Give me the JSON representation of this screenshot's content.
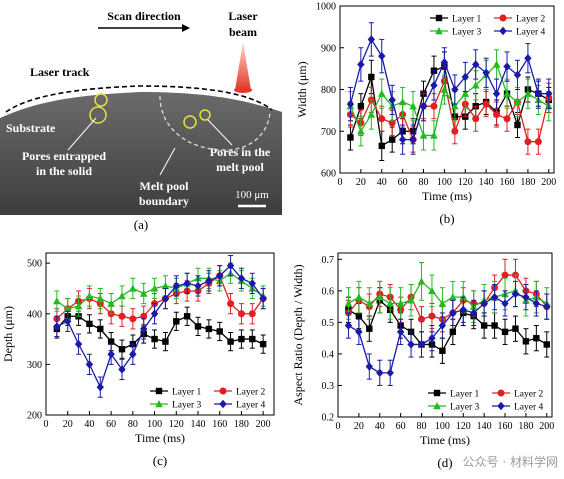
{
  "panel_a": {
    "label": "(a)",
    "scan_direction": "Scan direction",
    "laser_beam_line1": "Laser",
    "laser_beam_line2": "beam",
    "laser_track": "Laser track",
    "substrate": "Substrate",
    "pores_solid_line1": "Pores entrapped",
    "pores_solid_line2": "in the solid",
    "pores_melt_line1": "Pores in the",
    "pores_melt_line2": "melt pool",
    "melt_pool_line1": "Melt pool",
    "melt_pool_line2": "boundary",
    "scale_bar": "100 μm",
    "colors": {
      "background": "#4a4a4a",
      "beam": "#e23a2a",
      "pore_ring": "#e8e040"
    }
  },
  "chart_data": [
    {
      "id": "b",
      "type": "line",
      "panel_label": "(b)",
      "xlabel": "Time (ms)",
      "ylabel": "Width (μm)",
      "xlim": [
        0,
        205
      ],
      "ylim": [
        600,
        1000
      ],
      "xticks": [
        0,
        20,
        40,
        60,
        80,
        100,
        120,
        140,
        160,
        180,
        200
      ],
      "yticks": [
        600,
        700,
        800,
        900,
        1000
      ],
      "legend_position": "top-right",
      "x": [
        10,
        20,
        30,
        40,
        50,
        60,
        70,
        80,
        90,
        100,
        110,
        120,
        130,
        140,
        150,
        160,
        170,
        180,
        190,
        200
      ],
      "series": [
        {
          "name": "Layer 1",
          "color": "#000000",
          "marker": "square",
          "values": [
            685,
            760,
            830,
            665,
            680,
            700,
            700,
            790,
            845,
            855,
            735,
            735,
            760,
            770,
            745,
            790,
            715,
            800,
            790,
            775
          ],
          "errors": [
            30,
            30,
            40,
            35,
            30,
            30,
            30,
            30,
            35,
            35,
            30,
            30,
            30,
            30,
            30,
            30,
            30,
            30,
            30,
            30
          ]
        },
        {
          "name": "Layer 2",
          "color": "#e02020",
          "marker": "circle",
          "values": [
            740,
            720,
            775,
            730,
            720,
            740,
            680,
            760,
            760,
            820,
            700,
            765,
            730,
            765,
            740,
            730,
            770,
            675,
            675,
            780
          ],
          "errors": [
            30,
            30,
            30,
            30,
            30,
            30,
            30,
            30,
            30,
            35,
            30,
            30,
            30,
            30,
            30,
            30,
            30,
            30,
            30,
            35
          ]
        },
        {
          "name": "Layer 3",
          "color": "#22bb22",
          "marker": "triangle",
          "values": [
            760,
            700,
            740,
            790,
            760,
            770,
            760,
            690,
            690,
            800,
            760,
            790,
            810,
            835,
            860,
            790,
            770,
            790,
            775,
            760
          ],
          "errors": [
            35,
            35,
            35,
            35,
            35,
            35,
            35,
            35,
            35,
            35,
            35,
            35,
            35,
            35,
            35,
            35,
            35,
            35,
            35,
            35
          ]
        },
        {
          "name": "Layer 4",
          "color": "#1a1aaa",
          "marker": "diamond",
          "values": [
            765,
            860,
            920,
            880,
            775,
            680,
            680,
            760,
            810,
            865,
            800,
            830,
            860,
            840,
            790,
            855,
            835,
            875,
            790,
            790
          ],
          "errors": [
            40,
            40,
            40,
            40,
            35,
            35,
            35,
            35,
            35,
            35,
            35,
            35,
            35,
            35,
            35,
            35,
            35,
            35,
            35,
            35
          ]
        }
      ]
    },
    {
      "id": "c",
      "type": "line",
      "panel_label": "(c)",
      "xlabel": "Time (ms)",
      "ylabel": "Depth (μm)",
      "xlim": [
        0,
        210
      ],
      "ylim": [
        200,
        520
      ],
      "xticks": [
        0,
        20,
        40,
        60,
        80,
        100,
        120,
        140,
        160,
        180,
        200
      ],
      "yticks": [
        200,
        300,
        400,
        500
      ],
      "legend_position": "bottom-right",
      "x": [
        10,
        20,
        30,
        40,
        50,
        60,
        70,
        80,
        90,
        100,
        110,
        120,
        130,
        140,
        150,
        160,
        170,
        180,
        190,
        200
      ],
      "series": [
        {
          "name": "Layer 1",
          "color": "#000000",
          "marker": "square",
          "values": [
            370,
            395,
            395,
            380,
            370,
            345,
            330,
            340,
            360,
            350,
            345,
            385,
            395,
            375,
            370,
            365,
            345,
            350,
            350,
            340
          ],
          "errors": [
            18,
            18,
            18,
            18,
            18,
            18,
            18,
            18,
            18,
            18,
            18,
            18,
            18,
            18,
            18,
            18,
            18,
            18,
            18,
            18
          ]
        },
        {
          "name": "Layer 2",
          "color": "#e02020",
          "marker": "circle",
          "values": [
            390,
            410,
            425,
            430,
            420,
            400,
            395,
            390,
            395,
            420,
            430,
            440,
            445,
            445,
            460,
            475,
            420,
            400,
            400,
            430
          ],
          "errors": [
            20,
            20,
            20,
            20,
            20,
            20,
            20,
            20,
            20,
            20,
            20,
            20,
            20,
            20,
            20,
            20,
            20,
            20,
            20,
            20
          ]
        },
        {
          "name": "Layer 3",
          "color": "#22bb22",
          "marker": "triangle",
          "values": [
            425,
            410,
            415,
            435,
            430,
            420,
            435,
            450,
            440,
            450,
            455,
            450,
            460,
            470,
            470,
            465,
            480,
            465,
            450,
            435
          ],
          "errors": [
            20,
            20,
            20,
            20,
            20,
            20,
            20,
            20,
            20,
            20,
            20,
            20,
            20,
            20,
            20,
            20,
            20,
            20,
            20,
            20
          ]
        },
        {
          "name": "Layer 4",
          "color": "#1a1aaa",
          "marker": "diamond",
          "values": [
            375,
            385,
            340,
            300,
            255,
            320,
            290,
            320,
            370,
            400,
            430,
            455,
            460,
            455,
            465,
            475,
            495,
            470,
            460,
            430
          ],
          "errors": [
            20,
            20,
            20,
            20,
            20,
            20,
            20,
            20,
            20,
            20,
            20,
            20,
            20,
            20,
            20,
            20,
            20,
            20,
            20,
            20
          ]
        }
      ]
    },
    {
      "id": "d",
      "type": "line",
      "panel_label": "(d)",
      "xlabel": "Time (ms)",
      "ylabel": "Aspect Ratio (Depth / Width)",
      "xlim": [
        0,
        205
      ],
      "ylim": [
        0.2,
        0.72
      ],
      "xticks": [
        0,
        20,
        40,
        60,
        80,
        100,
        120,
        140,
        160,
        180,
        200
      ],
      "yticks": [
        0.2,
        0.3,
        0.4,
        0.5,
        0.6,
        0.7
      ],
      "legend_position": "bottom-right",
      "x": [
        10,
        20,
        30,
        40,
        50,
        60,
        70,
        80,
        90,
        100,
        110,
        120,
        130,
        140,
        150,
        160,
        170,
        180,
        190,
        200
      ],
      "series": [
        {
          "name": "Layer 1",
          "color": "#000000",
          "marker": "square",
          "values": [
            0.54,
            0.52,
            0.48,
            0.57,
            0.54,
            0.49,
            0.47,
            0.43,
            0.43,
            0.41,
            0.47,
            0.53,
            0.52,
            0.49,
            0.49,
            0.47,
            0.48,
            0.44,
            0.45,
            0.43
          ],
          "errors": [
            0.04,
            0.04,
            0.04,
            0.04,
            0.04,
            0.04,
            0.04,
            0.04,
            0.04,
            0.04,
            0.04,
            0.04,
            0.04,
            0.04,
            0.04,
            0.04,
            0.04,
            0.04,
            0.04,
            0.04
          ]
        },
        {
          "name": "Layer 2",
          "color": "#e02020",
          "marker": "circle",
          "values": [
            0.53,
            0.57,
            0.55,
            0.59,
            0.58,
            0.54,
            0.58,
            0.51,
            0.52,
            0.51,
            0.53,
            0.57,
            0.56,
            0.56,
            0.61,
            0.65,
            0.65,
            0.6,
            0.59,
            0.55
          ],
          "errors": [
            0.04,
            0.04,
            0.04,
            0.04,
            0.04,
            0.04,
            0.04,
            0.04,
            0.04,
            0.04,
            0.04,
            0.04,
            0.04,
            0.04,
            0.04,
            0.05,
            0.05,
            0.04,
            0.04,
            0.04
          ]
        },
        {
          "name": "Layer 3",
          "color": "#22bb22",
          "marker": "triangle",
          "values": [
            0.56,
            0.58,
            0.56,
            0.58,
            0.56,
            0.56,
            0.57,
            0.63,
            0.6,
            0.56,
            0.58,
            0.58,
            0.55,
            0.57,
            0.58,
            0.59,
            0.6,
            0.57,
            0.58,
            0.56
          ],
          "errors": [
            0.05,
            0.05,
            0.05,
            0.05,
            0.05,
            0.05,
            0.05,
            0.06,
            0.05,
            0.05,
            0.05,
            0.05,
            0.05,
            0.05,
            0.05,
            0.05,
            0.05,
            0.05,
            0.05,
            0.05
          ]
        },
        {
          "name": "Layer 4",
          "color": "#1a1aaa",
          "marker": "diamond",
          "values": [
            0.49,
            0.47,
            0.36,
            0.34,
            0.34,
            0.47,
            0.43,
            0.43,
            0.45,
            0.49,
            0.53,
            0.54,
            0.53,
            0.56,
            0.58,
            0.56,
            0.59,
            0.58,
            0.56,
            0.55
          ],
          "errors": [
            0.04,
            0.04,
            0.04,
            0.04,
            0.04,
            0.04,
            0.04,
            0.04,
            0.04,
            0.04,
            0.04,
            0.04,
            0.04,
            0.04,
            0.04,
            0.04,
            0.04,
            0.04,
            0.04,
            0.04
          ]
        }
      ]
    }
  ],
  "watermark": "公众号 · 材料学网"
}
